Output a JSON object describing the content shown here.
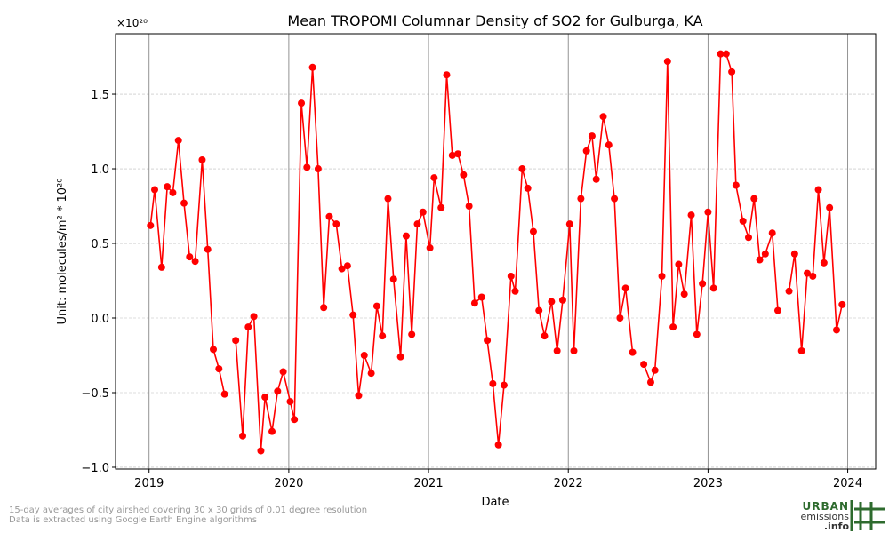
{
  "chart_data": {
    "type": "line",
    "title": "Mean TROPOMI Columnar Density of SO2 for Gulburga, KA",
    "x_label": "Date",
    "y_label": "Unit: molecules/m² * 10²⁰",
    "y_offset_label": "×10²⁰",
    "footnotes": [
      "15-day averages of city airshed covering 30 x 30 grids of 0.01 degree resolution",
      "Data is extracted using Google Earth Engine algorithms"
    ],
    "logo": [
      "URBAN",
      "emissions",
      ".info"
    ],
    "grid": true,
    "xlim": [
      2018.76,
      2024.2
    ],
    "ylim": [
      -1.012,
      1.905
    ],
    "xticks": [
      2019,
      2020,
      2021,
      2022,
      2023,
      2024
    ],
    "yticks": [
      {
        "value": -1.0,
        "label": "−1.0"
      },
      {
        "value": -0.5,
        "label": "−0.5"
      },
      {
        "value": 0.0,
        "label": "0.0"
      },
      {
        "value": 0.5,
        "label": "0.5"
      },
      {
        "value": 1.0,
        "label": "1.0"
      },
      {
        "value": 1.5,
        "label": "1.5"
      }
    ],
    "x": [
      2019.01,
      2019.04,
      2019.09,
      2019.13,
      2019.17,
      2019.21,
      2019.25,
      2019.29,
      2019.33,
      2019.38,
      2019.42,
      2019.46,
      2019.5,
      2019.54,
      2019.58,
      2019.62,
      2019.67,
      2019.71,
      2019.75,
      2019.8,
      2019.83,
      2019.88,
      2019.92,
      2019.96,
      2020.01,
      2020.04,
      2020.09,
      2020.13,
      2020.17,
      2020.21,
      2020.25,
      2020.29,
      2020.34,
      2020.38,
      2020.42,
      2020.46,
      2020.5,
      2020.54,
      2020.59,
      2020.63,
      2020.67,
      2020.71,
      2020.75,
      2020.8,
      2020.84,
      2020.88,
      2020.92,
      2020.96,
      2021.01,
      2021.04,
      2021.09,
      2021.13,
      2021.17,
      2021.21,
      2021.25,
      2021.29,
      2021.33,
      2021.38,
      2021.42,
      2021.46,
      2021.5,
      2021.54,
      2021.59,
      2021.62,
      2021.67,
      2021.71,
      2021.75,
      2021.79,
      2021.83,
      2021.88,
      2021.92,
      2021.96,
      2022.01,
      2022.04,
      2022.09,
      2022.13,
      2022.17,
      2022.2,
      2022.25,
      2022.29,
      2022.33,
      2022.37,
      2022.41,
      2022.46,
      2022.5,
      2022.54,
      2022.59,
      2022.62,
      2022.67,
      2022.71,
      2022.75,
      2022.79,
      2022.83,
      2022.88,
      2022.92,
      2022.96,
      2023.0,
      2023.04,
      2023.09,
      2023.13,
      2023.17,
      2023.2,
      2023.25,
      2023.29,
      2023.33,
      2023.37,
      2023.41,
      2023.46,
      2023.5,
      2023.54,
      2023.58,
      2023.62,
      2023.67,
      2023.71,
      2023.75,
      2023.79,
      2023.83,
      2023.87,
      2023.92,
      2023.96
    ],
    "series": [
      {
        "name": "SO2",
        "color": "#ff0000",
        "values": [
          0.62,
          0.86,
          0.34,
          0.88,
          0.84,
          1.19,
          0.77,
          0.41,
          0.38,
          1.06,
          0.46,
          -0.21,
          -0.34,
          -0.51,
          null,
          -0.15,
          -0.79,
          -0.06,
          0.01,
          -0.89,
          -0.53,
          -0.76,
          -0.49,
          -0.36,
          -0.56,
          -0.68,
          1.44,
          1.01,
          1.68,
          1.0,
          0.07,
          0.68,
          0.63,
          0.33,
          0.35,
          0.02,
          -0.52,
          -0.25,
          -0.37,
          0.08,
          -0.12,
          0.8,
          0.26,
          -0.26,
          0.55,
          -0.11,
          0.63,
          0.71,
          0.47,
          0.94,
          0.74,
          1.63,
          1.09,
          1.1,
          0.96,
          0.75,
          0.1,
          0.14,
          -0.15,
          -0.44,
          -0.85,
          -0.45,
          0.28,
          0.18,
          1.0,
          0.87,
          0.58,
          0.05,
          -0.12,
          0.11,
          -0.22,
          0.12,
          0.63,
          -0.22,
          0.8,
          1.12,
          1.22,
          0.93,
          1.35,
          1.16,
          0.8,
          0.0,
          0.2,
          -0.23,
          null,
          -0.31,
          -0.43,
          -0.35,
          0.28,
          1.72,
          -0.06,
          0.36,
          0.16,
          0.69,
          -0.11,
          0.23,
          0.71,
          0.2,
          1.77,
          1.77,
          1.65,
          0.89,
          0.65,
          0.54,
          0.8,
          0.39,
          0.43,
          0.57,
          0.05,
          null,
          0.18,
          0.43,
          -0.22,
          0.3,
          0.28,
          0.86,
          0.37,
          0.74,
          -0.08,
          0.09
        ]
      }
    ]
  }
}
